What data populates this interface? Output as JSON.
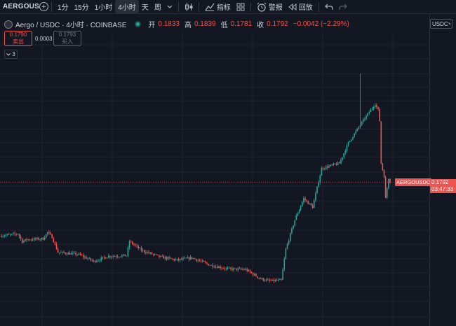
{
  "toolbar": {
    "symbol": "AERGOUSDC",
    "intervals": [
      "1分",
      "15分",
      "1小时",
      "4小时"
    ],
    "active_interval": "4小时",
    "day": "天",
    "week": "周",
    "indicators": "指标",
    "alert": "警报",
    "replay": "回放"
  },
  "legend": {
    "title": "Aergo / USDC · 4小时 · COINBASE",
    "open_label": "开",
    "open": "0.1833",
    "high_label": "高",
    "high": "0.1839",
    "low_label": "低",
    "low": "0.1781",
    "close_label": "收",
    "close": "0.1792",
    "change": "−0.0042 (−2.29%)"
  },
  "trade": {
    "sell_price": "0.1790",
    "sell_label": "卖出",
    "spread": "0.0003",
    "buy_price": "0.1793",
    "buy_label": "买入"
  },
  "collapsed_count": "3",
  "currency": "USDC",
  "colors": {
    "up": "#26a69a",
    "down": "#ef5350",
    "bg": "#131722",
    "grid": "#1f2330"
  },
  "chart_data": {
    "type": "candlestick",
    "scale": "log",
    "y_ticks": [
      "1.0800",
      "0.9000",
      "0.7400",
      "0.6200",
      "0.5200",
      "0.4300",
      "0.3600",
      "0.3000",
      "0.2500",
      "0.2050",
      "0.1700",
      "0.1400",
      "0.1160",
      "0.0960",
      "0.0800",
      "0.0660",
      "0.0550",
      "0.0460",
      "0.0380",
      "0.0310"
    ],
    "last_price": "0.1792",
    "last_price_symbol": "AERGOUSDC",
    "countdown": "03:47:33",
    "grid": true,
    "segments": [
      {
        "from": 0,
        "to": 0.0905,
        "steps": 8
      },
      {
        "from": 0.0905,
        "to": 0.092,
        "steps": 4
      },
      {
        "from": 0.092,
        "to": 0.083,
        "steps": 3
      },
      {
        "from": 0.083,
        "to": 0.085,
        "steps": 3
      },
      {
        "from": 0.085,
        "to": 0.086,
        "steps": 11
      },
      {
        "from": 0.086,
        "to": 0.0935,
        "steps": 3
      },
      {
        "from": 0.0935,
        "to": 0.088,
        "steps": 3
      },
      {
        "from": 0.088,
        "to": 0.072,
        "steps": 4
      },
      {
        "from": 0.072,
        "to": 0.07,
        "steps": 14
      },
      {
        "from": 0.07,
        "to": 0.064,
        "steps": 10
      },
      {
        "from": 0.064,
        "to": 0.0685,
        "steps": 10
      },
      {
        "from": 0.0685,
        "to": 0.069,
        "steps": 12
      },
      {
        "from": 0.069,
        "to": 0.083,
        "steps": 2
      },
      {
        "from": 0.083,
        "to": 0.074,
        "steps": 8
      },
      {
        "from": 0.074,
        "to": 0.068,
        "steps": 12
      },
      {
        "from": 0.068,
        "to": 0.065,
        "steps": 12
      },
      {
        "from": 0.065,
        "to": 0.067,
        "steps": 10
      },
      {
        "from": 0.067,
        "to": 0.061,
        "steps": 12
      },
      {
        "from": 0.061,
        "to": 0.058,
        "steps": 12
      },
      {
        "from": 0.058,
        "to": 0.0575,
        "steps": 12
      },
      {
        "from": 0.0575,
        "to": 0.051,
        "steps": 10
      },
      {
        "from": 0.051,
        "to": 0.0495,
        "steps": 6
      },
      {
        "from": 0.0495,
        "to": 0.05,
        "steps": 8
      },
      {
        "from": 0.05,
        "to": 0.075,
        "steps": 3
      },
      {
        "from": 0.075,
        "to": 0.11,
        "steps": 6
      },
      {
        "from": 0.11,
        "to": 0.145,
        "steps": 6
      },
      {
        "from": 0.145,
        "to": 0.13,
        "steps": 6
      },
      {
        "from": 0.13,
        "to": 0.215,
        "steps": 6
      },
      {
        "from": 0.215,
        "to": 0.225,
        "steps": 8
      },
      {
        "from": 0.225,
        "to": 0.23,
        "steps": 4
      },
      {
        "from": 0.23,
        "to": 0.3,
        "steps": 6
      },
      {
        "from": 0.3,
        "to": 0.38,
        "steps": 8
      },
      {
        "from": 0.38,
        "to": 0.45,
        "steps": 6
      },
      {
        "from": 0.45,
        "to": 0.5,
        "steps": 4
      },
      {
        "from": 0.5,
        "to": 0.46,
        "steps": 2
      },
      {
        "from": 0.46,
        "to": 0.4,
        "steps": 1
      },
      {
        "from": 0.4,
        "to": 0.23,
        "steps": 1
      },
      {
        "from": 0.23,
        "to": 0.195,
        "steps": 2
      },
      {
        "from": 0.195,
        "to": 0.145,
        "steps": 1
      },
      {
        "from": 0.145,
        "to": 0.19,
        "steps": 2
      },
      {
        "from": 0.19,
        "to": 0.1792,
        "steps": 1
      }
    ],
    "spikes": [
      {
        "candle": 241,
        "high": 0.74
      }
    ]
  }
}
